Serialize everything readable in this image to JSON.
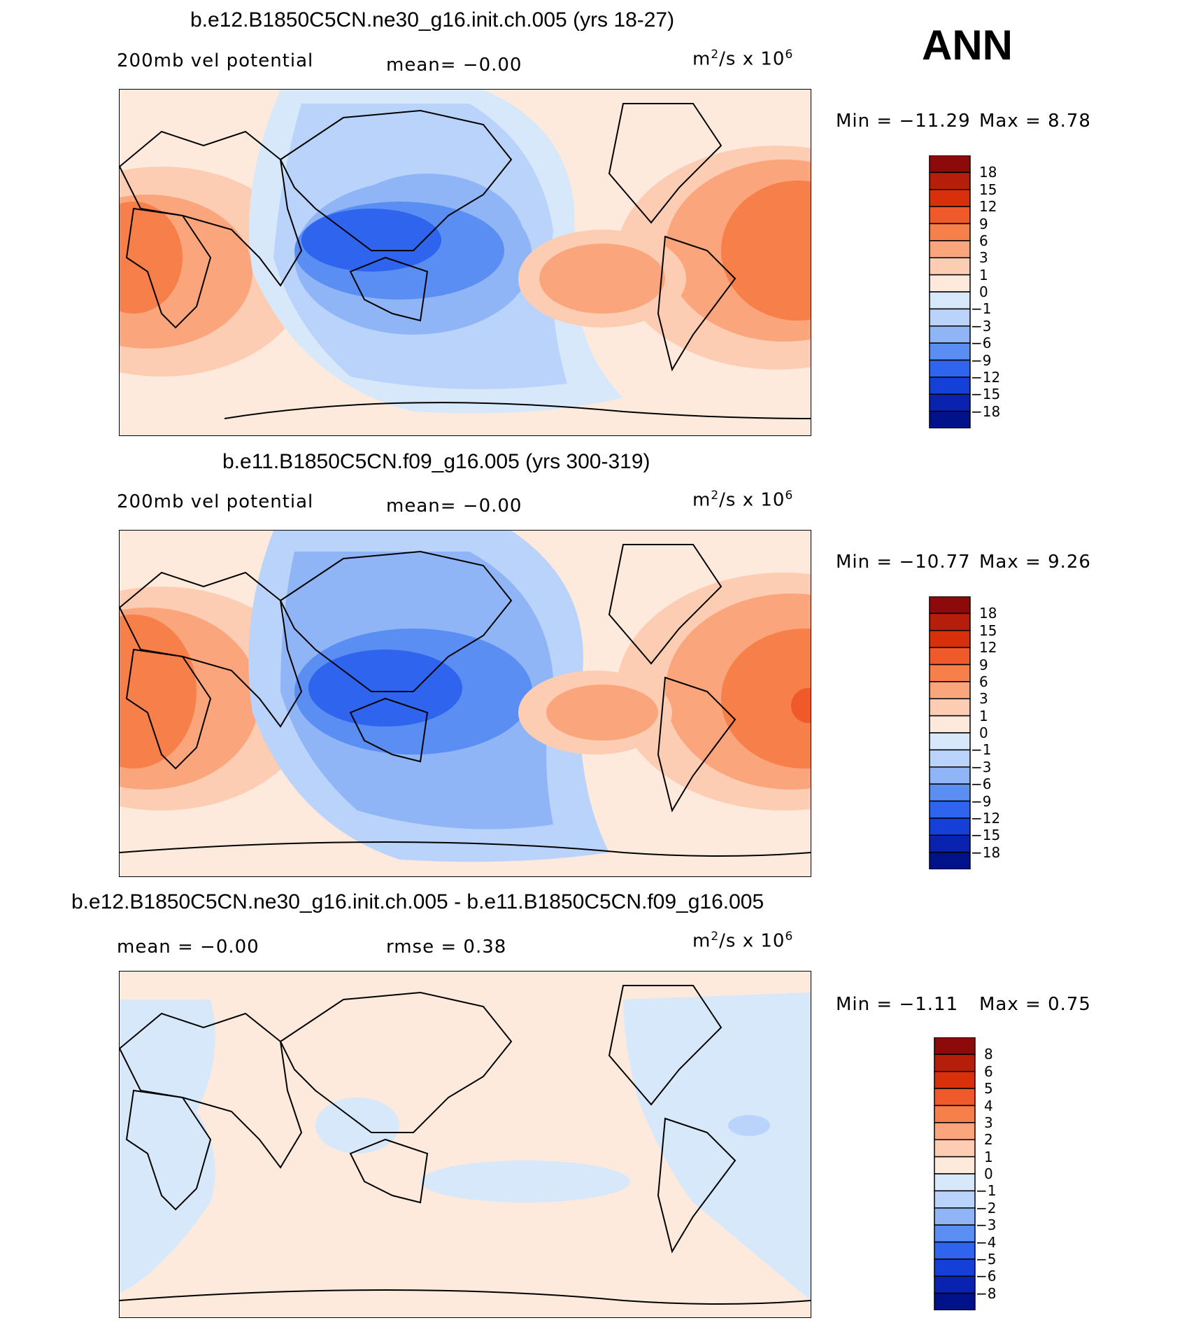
{
  "season": "ANN",
  "chart_data": [
    {
      "type": "heatmap",
      "title": "b.e12.B1850C5CN.ne30_g16.init.ch.005 (yrs 18-27)",
      "left_label": "200mb vel potential",
      "center_label": "mean=   −0.00",
      "units": "m²/s x 10⁶",
      "min_label": "Min  =  −11.29",
      "max_label": "Max  =    8.78",
      "colorbar": {
        "levels": [
          "18",
          "15",
          "12",
          "9",
          "6",
          "3",
          "1",
          "0",
          "−1",
          "−3",
          "−6",
          "−9",
          "−12",
          "−15",
          "−18"
        ],
        "colors": [
          "#8c0a0a",
          "#b41e0a",
          "#d7300a",
          "#f05a28",
          "#f77f4a",
          "#fba57d",
          "#fdcdb3",
          "#feeadc",
          "#d7e8fb",
          "#b9d3fa",
          "#8fb5f6",
          "#5b8ef2",
          "#2e64ee",
          "#1540d8",
          "#0a22b0",
          "#00128a"
        ]
      }
    },
    {
      "type": "heatmap",
      "title": "b.e11.B1850C5CN.f09_g16.005 (yrs 300-319)",
      "left_label": "200mb vel potential",
      "center_label": "mean=   −0.00",
      "units": "m²/s x 10⁶",
      "min_label": "Min  =  −10.77",
      "max_label": "Max  =    9.26",
      "colorbar": {
        "levels": [
          "18",
          "15",
          "12",
          "9",
          "6",
          "3",
          "1",
          "0",
          "−1",
          "−3",
          "−6",
          "−9",
          "−12",
          "−15",
          "−18"
        ],
        "colors": [
          "#8c0a0a",
          "#b41e0a",
          "#d7300a",
          "#f05a28",
          "#f77f4a",
          "#fba57d",
          "#fdcdb3",
          "#feeadc",
          "#d7e8fb",
          "#b9d3fa",
          "#8fb5f6",
          "#5b8ef2",
          "#2e64ee",
          "#1540d8",
          "#0a22b0",
          "#00128a"
        ]
      }
    },
    {
      "type": "heatmap",
      "title": "b.e12.B1850C5CN.ne30_g16.init.ch.005 - b.e11.B1850C5CN.f09_g16.005",
      "left_label": "mean =   −0.00",
      "center_label": "rmse =    0.38",
      "units": "m²/s x 10⁶",
      "min_label": "Min  =   −1.11",
      "max_label": "Max  =    0.75",
      "colorbar": {
        "levels": [
          "8",
          "6",
          "5",
          "4",
          "3",
          "2",
          "1",
          "0",
          "−1",
          "−2",
          "−3",
          "−4",
          "−5",
          "−6",
          "−8"
        ],
        "colors": [
          "#8c0a0a",
          "#b41e0a",
          "#d7300a",
          "#f05a28",
          "#f77f4a",
          "#fba57d",
          "#fdcdb3",
          "#feeadc",
          "#d7e8fb",
          "#b9d3fa",
          "#8fb5f6",
          "#5b8ef2",
          "#2e64ee",
          "#1540d8",
          "#0a22b0",
          "#00128a"
        ]
      }
    }
  ]
}
